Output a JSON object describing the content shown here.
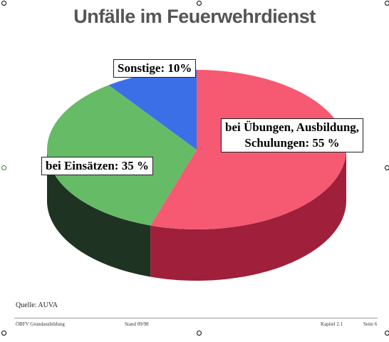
{
  "title": "Unfälle im Feuerwehrdienst",
  "chart_data": {
    "type": "pie",
    "title": "Unfälle im Feuerwehrdienst",
    "slices": [
      {
        "label": "bei Übungen, Ausbildung, Schulungen",
        "value": 55,
        "display": "bei Übungen, Ausbildung, Schulungen: 55 %",
        "color": "#f55a72",
        "side_color": "#a01f3a"
      },
      {
        "label": "bei Einsätzen",
        "value": 35,
        "display": "bei Einsätzen: 35 %",
        "color": "#66bb66",
        "side_color": "#1f3322"
      },
      {
        "label": "Sonstige",
        "value": 10,
        "display": "Sonstige: 10%",
        "color": "#3a6fe8",
        "side_color": "#1f3a8a"
      }
    ],
    "labels": {
      "ubungen_line1": "bei Übungen, Ausbildung,",
      "ubungen_line2": "Schulungen: 55 %",
      "einsaetze": "bei Einsätzen: 35 %",
      "sonstige": "Sonstige: 10%"
    }
  },
  "source": "Quelle: AUVA",
  "footer": {
    "left": "ÖBFV Grundausbildung",
    "stand": "Stand 09/98",
    "kapitel": "Kapitel 2.1",
    "seite": "Seite 6"
  }
}
